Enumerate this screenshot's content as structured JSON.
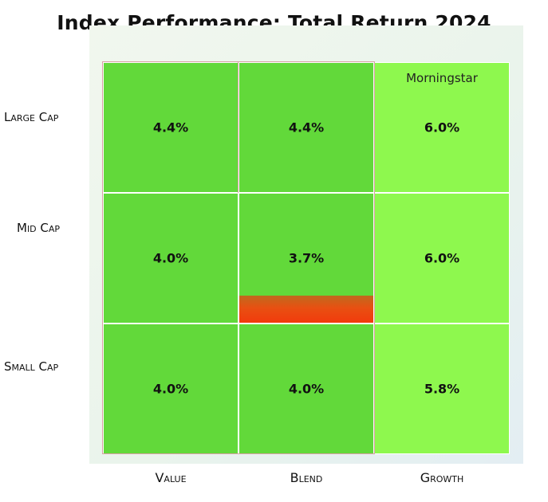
{
  "title": "Index Performance: Total Return 2024",
  "source_label": "Morningstar",
  "chart_data": {
    "type": "heatmap",
    "title": "Index Performance: Total Return 2024",
    "rows": [
      "Large Cap",
      "Mid Cap",
      "Small Cap"
    ],
    "columns": [
      "Value",
      "Blend",
      "Growth"
    ],
    "values": [
      [
        4.4,
        4.4,
        6.0
      ],
      [
        4.0,
        3.7,
        6.0
      ],
      [
        4.0,
        4.0,
        5.8
      ]
    ],
    "labels": [
      [
        "4.4%",
        "4.4%",
        "6.0%"
      ],
      [
        "4.0%",
        "3.7%",
        "6.0%"
      ],
      [
        "4.0%",
        "4.0%",
        "5.8%"
      ]
    ],
    "colors": {
      "dark_green": "#62d93a",
      "light_green": "#8ef84e",
      "decline": "#f23a0c"
    }
  }
}
